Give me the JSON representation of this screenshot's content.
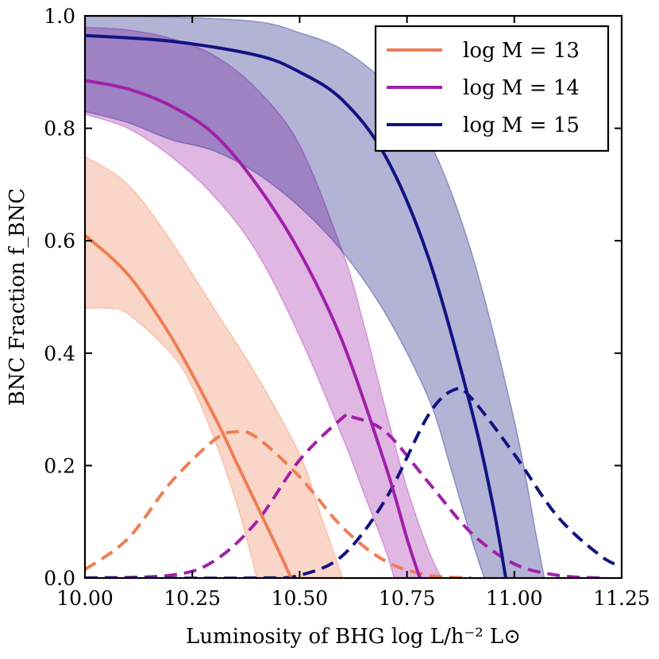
{
  "chart_data": {
    "type": "line",
    "title": "",
    "xlabel": "Luminosity of BHG log L/h⁻² L⊙",
    "ylabel": "BNC Fraction f_BNC",
    "xlim": [
      10.0,
      11.25
    ],
    "ylim": [
      0.0,
      1.0
    ],
    "x_ticks": [
      "10.00",
      "10.25",
      "10.50",
      "10.75",
      "11.00",
      "11.25"
    ],
    "y_ticks": [
      "0.0",
      "0.2",
      "0.4",
      "0.6",
      "0.8",
      "1.0"
    ],
    "grid": false,
    "legend_position": "top-right",
    "series": [
      {
        "name": "log M = 13",
        "color": "#ee7e55",
        "fraction": {
          "x": [
            10.0,
            10.1,
            10.2,
            10.3,
            10.35,
            10.4,
            10.45,
            10.48
          ],
          "y": [
            0.61,
            0.54,
            0.43,
            0.29,
            0.21,
            0.13,
            0.05,
            0.0
          ]
        },
        "band_upper": {
          "x": [
            10.0,
            10.1,
            10.2,
            10.3,
            10.4,
            10.5,
            10.55,
            10.6
          ],
          "y": [
            0.75,
            0.7,
            0.6,
            0.48,
            0.36,
            0.22,
            0.11,
            0.0
          ]
        },
        "band_lower": {
          "x": [
            10.0,
            10.05,
            10.1,
            10.2,
            10.25,
            10.3,
            10.35,
            10.38,
            10.4
          ],
          "y": [
            0.48,
            0.48,
            0.47,
            0.4,
            0.34,
            0.25,
            0.14,
            0.06,
            0.0
          ]
        },
        "distribution": {
          "x": [
            10.0,
            10.1,
            10.2,
            10.3,
            10.35,
            10.4,
            10.5,
            10.6,
            10.7,
            10.8,
            10.9
          ],
          "y": [
            0.015,
            0.07,
            0.17,
            0.245,
            0.26,
            0.25,
            0.18,
            0.09,
            0.03,
            0.005,
            0.0
          ]
        }
      },
      {
        "name": "log M = 14",
        "color": "#a020a8",
        "fraction": {
          "x": [
            10.0,
            10.1,
            10.2,
            10.3,
            10.4,
            10.5,
            10.6,
            10.7,
            10.75,
            10.78
          ],
          "y": [
            0.885,
            0.87,
            0.84,
            0.79,
            0.7,
            0.58,
            0.42,
            0.2,
            0.07,
            0.0
          ]
        },
        "band_upper": {
          "x": [
            10.0,
            10.1,
            10.2,
            10.3,
            10.4,
            10.5,
            10.6,
            10.65,
            10.7,
            10.75,
            10.8,
            10.83
          ],
          "y": [
            0.98,
            0.975,
            0.96,
            0.93,
            0.87,
            0.77,
            0.58,
            0.45,
            0.3,
            0.16,
            0.05,
            0.0
          ]
        },
        "band_lower": {
          "x": [
            10.0,
            10.1,
            10.2,
            10.3,
            10.4,
            10.5,
            10.6,
            10.65,
            10.7,
            10.72
          ],
          "y": [
            0.825,
            0.8,
            0.75,
            0.68,
            0.58,
            0.43,
            0.25,
            0.15,
            0.05,
            0.0
          ]
        },
        "distribution": {
          "x": [
            10.0,
            10.2,
            10.3,
            10.4,
            10.5,
            10.6,
            10.62,
            10.7,
            10.8,
            10.9,
            11.0,
            11.1,
            11.2
          ],
          "y": [
            0.0,
            0.005,
            0.03,
            0.1,
            0.21,
            0.285,
            0.287,
            0.26,
            0.17,
            0.08,
            0.025,
            0.005,
            0.0
          ]
        }
      },
      {
        "name": "log M = 15",
        "color": "#121380",
        "fraction": {
          "x": [
            10.0,
            10.2,
            10.4,
            10.5,
            10.6,
            10.7,
            10.8,
            10.9,
            10.95,
            10.98
          ],
          "y": [
            0.965,
            0.955,
            0.93,
            0.9,
            0.85,
            0.75,
            0.57,
            0.3,
            0.13,
            0.0
          ]
        },
        "band_upper": {
          "x": [
            10.0,
            10.2,
            10.4,
            10.5,
            10.6,
            10.7,
            10.8,
            10.9,
            11.0,
            11.05,
            11.07
          ],
          "y": [
            1.0,
            0.998,
            0.99,
            0.97,
            0.94,
            0.88,
            0.78,
            0.58,
            0.28,
            0.08,
            0.0
          ]
        },
        "band_lower": {
          "x": [
            10.0,
            10.1,
            10.2,
            10.3,
            10.4,
            10.5,
            10.6,
            10.7,
            10.8,
            10.85,
            10.9,
            10.93
          ],
          "y": [
            0.83,
            0.81,
            0.78,
            0.76,
            0.72,
            0.66,
            0.58,
            0.47,
            0.32,
            0.2,
            0.07,
            0.0
          ]
        },
        "distribution": {
          "x": [
            10.0,
            10.4,
            10.5,
            10.6,
            10.7,
            10.8,
            10.86,
            10.9,
            11.0,
            11.1,
            11.2,
            11.25
          ],
          "y": [
            0.0,
            0.0,
            0.005,
            0.04,
            0.14,
            0.29,
            0.335,
            0.32,
            0.22,
            0.11,
            0.04,
            0.02
          ]
        }
      }
    ]
  }
}
